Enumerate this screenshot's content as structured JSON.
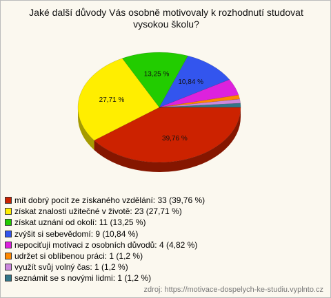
{
  "chart_data": {
    "type": "pie3d",
    "title": "Jaké další důvody Vás osobně motivovaly k rozhodnutí studovat vysokou školu?",
    "categories": [
      "mít dobrý pocit ze získaného vzdělání: 33 (39,76 %)",
      "získat znalosti užitečné v životě: 23 (27,71 %)",
      "získat uznání od okolí: 11 (13,25 %)",
      "zvýšit si sebevědomí: 9 (10,84 %)",
      "nepociťuji motivaci z osobních důvodů: 4 (4,82 %)",
      "udržet si oblíbenou práci: 1 (1,2 %)",
      "využít svůj volný čas: 1 (1,2 %)",
      "seznámit se s novými lidmi: 1 (1,2 %)"
    ],
    "values": [
      39.76,
      27.71,
      13.25,
      10.84,
      4.82,
      1.2,
      1.2,
      1.2
    ],
    "value_labels": [
      "39,76 %",
      "27,71 %",
      "13,25 %",
      "10,84 %",
      null,
      null,
      null,
      null
    ],
    "colors": [
      "#cc2200",
      "#ffee00",
      "#22cc00",
      "#3355ee",
      "#dd22dd",
      "#ff8800",
      "#cc88dd",
      "#337788"
    ],
    "source": "zdroj: https://motivace-dospelych-ke-studiu.vyplnto.cz"
  }
}
